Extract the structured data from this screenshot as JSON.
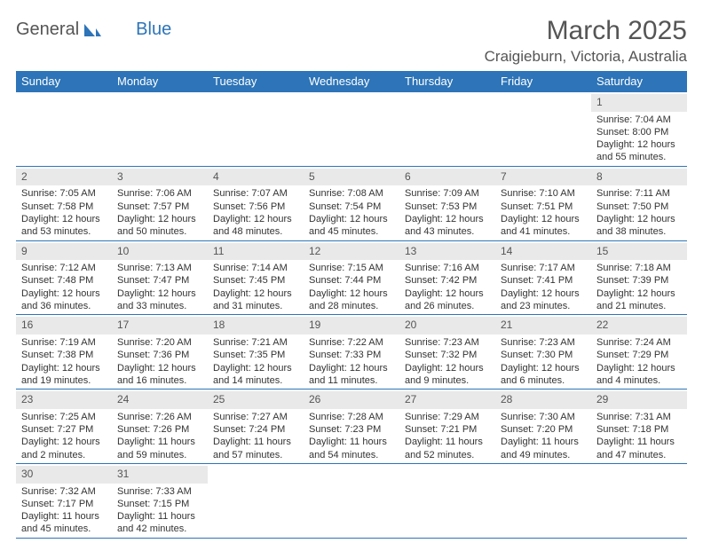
{
  "logo": {
    "word1": "General",
    "word2": "Blue",
    "sail_color": "#2d74b8"
  },
  "title": "March 2025",
  "location": "Craigieburn, Victoria, Australia",
  "header_bg": "#2d74b8",
  "daynum_bg": "#e9e9e9",
  "border_color": "#2d74b8",
  "weekdays": [
    "Sunday",
    "Monday",
    "Tuesday",
    "Wednesday",
    "Thursday",
    "Friday",
    "Saturday"
  ],
  "weeks": [
    [
      null,
      null,
      null,
      null,
      null,
      null,
      {
        "d": "1",
        "sr": "Sunrise: 7:04 AM",
        "ss": "Sunset: 8:00 PM",
        "dl": "Daylight: 12 hours and 55 minutes."
      }
    ],
    [
      {
        "d": "2",
        "sr": "Sunrise: 7:05 AM",
        "ss": "Sunset: 7:58 PM",
        "dl": "Daylight: 12 hours and 53 minutes."
      },
      {
        "d": "3",
        "sr": "Sunrise: 7:06 AM",
        "ss": "Sunset: 7:57 PM",
        "dl": "Daylight: 12 hours and 50 minutes."
      },
      {
        "d": "4",
        "sr": "Sunrise: 7:07 AM",
        "ss": "Sunset: 7:56 PM",
        "dl": "Daylight: 12 hours and 48 minutes."
      },
      {
        "d": "5",
        "sr": "Sunrise: 7:08 AM",
        "ss": "Sunset: 7:54 PM",
        "dl": "Daylight: 12 hours and 45 minutes."
      },
      {
        "d": "6",
        "sr": "Sunrise: 7:09 AM",
        "ss": "Sunset: 7:53 PM",
        "dl": "Daylight: 12 hours and 43 minutes."
      },
      {
        "d": "7",
        "sr": "Sunrise: 7:10 AM",
        "ss": "Sunset: 7:51 PM",
        "dl": "Daylight: 12 hours and 41 minutes."
      },
      {
        "d": "8",
        "sr": "Sunrise: 7:11 AM",
        "ss": "Sunset: 7:50 PM",
        "dl": "Daylight: 12 hours and 38 minutes."
      }
    ],
    [
      {
        "d": "9",
        "sr": "Sunrise: 7:12 AM",
        "ss": "Sunset: 7:48 PM",
        "dl": "Daylight: 12 hours and 36 minutes."
      },
      {
        "d": "10",
        "sr": "Sunrise: 7:13 AM",
        "ss": "Sunset: 7:47 PM",
        "dl": "Daylight: 12 hours and 33 minutes."
      },
      {
        "d": "11",
        "sr": "Sunrise: 7:14 AM",
        "ss": "Sunset: 7:45 PM",
        "dl": "Daylight: 12 hours and 31 minutes."
      },
      {
        "d": "12",
        "sr": "Sunrise: 7:15 AM",
        "ss": "Sunset: 7:44 PM",
        "dl": "Daylight: 12 hours and 28 minutes."
      },
      {
        "d": "13",
        "sr": "Sunrise: 7:16 AM",
        "ss": "Sunset: 7:42 PM",
        "dl": "Daylight: 12 hours and 26 minutes."
      },
      {
        "d": "14",
        "sr": "Sunrise: 7:17 AM",
        "ss": "Sunset: 7:41 PM",
        "dl": "Daylight: 12 hours and 23 minutes."
      },
      {
        "d": "15",
        "sr": "Sunrise: 7:18 AM",
        "ss": "Sunset: 7:39 PM",
        "dl": "Daylight: 12 hours and 21 minutes."
      }
    ],
    [
      {
        "d": "16",
        "sr": "Sunrise: 7:19 AM",
        "ss": "Sunset: 7:38 PM",
        "dl": "Daylight: 12 hours and 19 minutes."
      },
      {
        "d": "17",
        "sr": "Sunrise: 7:20 AM",
        "ss": "Sunset: 7:36 PM",
        "dl": "Daylight: 12 hours and 16 minutes."
      },
      {
        "d": "18",
        "sr": "Sunrise: 7:21 AM",
        "ss": "Sunset: 7:35 PM",
        "dl": "Daylight: 12 hours and 14 minutes."
      },
      {
        "d": "19",
        "sr": "Sunrise: 7:22 AM",
        "ss": "Sunset: 7:33 PM",
        "dl": "Daylight: 12 hours and 11 minutes."
      },
      {
        "d": "20",
        "sr": "Sunrise: 7:23 AM",
        "ss": "Sunset: 7:32 PM",
        "dl": "Daylight: 12 hours and 9 minutes."
      },
      {
        "d": "21",
        "sr": "Sunrise: 7:23 AM",
        "ss": "Sunset: 7:30 PM",
        "dl": "Daylight: 12 hours and 6 minutes."
      },
      {
        "d": "22",
        "sr": "Sunrise: 7:24 AM",
        "ss": "Sunset: 7:29 PM",
        "dl": "Daylight: 12 hours and 4 minutes."
      }
    ],
    [
      {
        "d": "23",
        "sr": "Sunrise: 7:25 AM",
        "ss": "Sunset: 7:27 PM",
        "dl": "Daylight: 12 hours and 2 minutes."
      },
      {
        "d": "24",
        "sr": "Sunrise: 7:26 AM",
        "ss": "Sunset: 7:26 PM",
        "dl": "Daylight: 11 hours and 59 minutes."
      },
      {
        "d": "25",
        "sr": "Sunrise: 7:27 AM",
        "ss": "Sunset: 7:24 PM",
        "dl": "Daylight: 11 hours and 57 minutes."
      },
      {
        "d": "26",
        "sr": "Sunrise: 7:28 AM",
        "ss": "Sunset: 7:23 PM",
        "dl": "Daylight: 11 hours and 54 minutes."
      },
      {
        "d": "27",
        "sr": "Sunrise: 7:29 AM",
        "ss": "Sunset: 7:21 PM",
        "dl": "Daylight: 11 hours and 52 minutes."
      },
      {
        "d": "28",
        "sr": "Sunrise: 7:30 AM",
        "ss": "Sunset: 7:20 PM",
        "dl": "Daylight: 11 hours and 49 minutes."
      },
      {
        "d": "29",
        "sr": "Sunrise: 7:31 AM",
        "ss": "Sunset: 7:18 PM",
        "dl": "Daylight: 11 hours and 47 minutes."
      }
    ],
    [
      {
        "d": "30",
        "sr": "Sunrise: 7:32 AM",
        "ss": "Sunset: 7:17 PM",
        "dl": "Daylight: 11 hours and 45 minutes."
      },
      {
        "d": "31",
        "sr": "Sunrise: 7:33 AM",
        "ss": "Sunset: 7:15 PM",
        "dl": "Daylight: 11 hours and 42 minutes."
      },
      null,
      null,
      null,
      null,
      null
    ]
  ]
}
